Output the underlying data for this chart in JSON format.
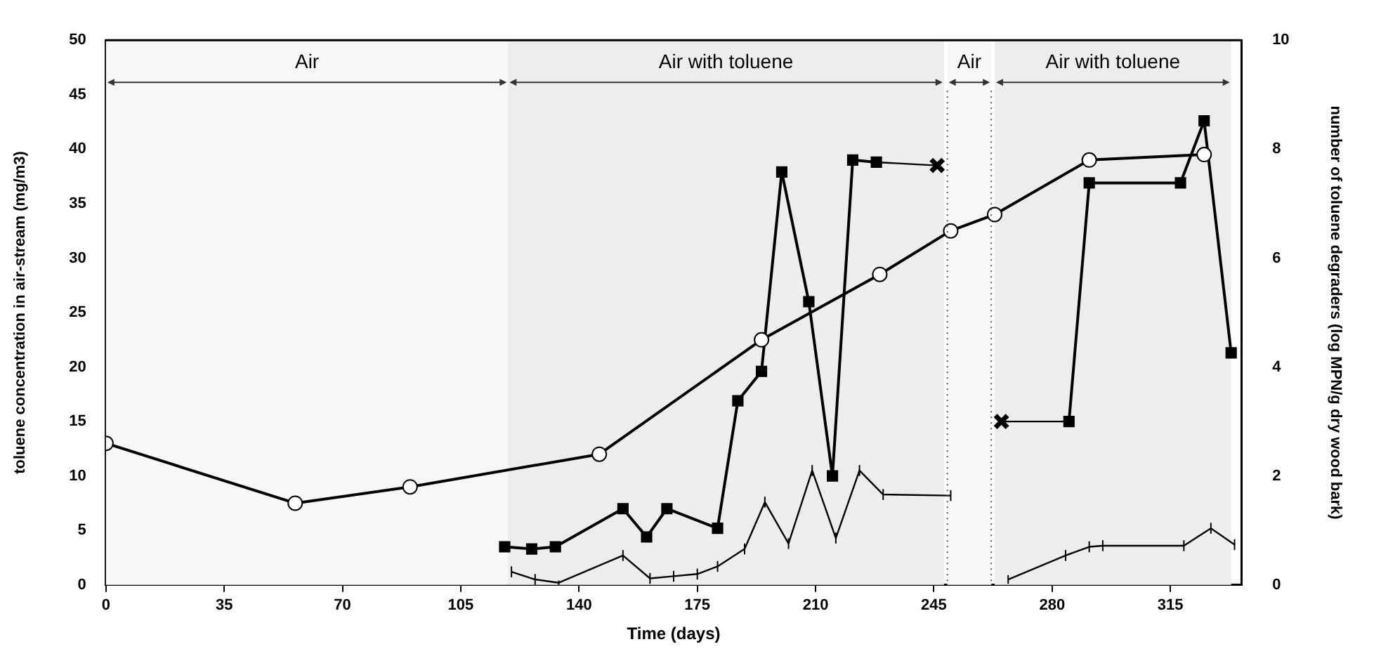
{
  "chart_data": {
    "type": "line",
    "xlabel": "Time (days)",
    "ylabel": "toluene concentration in air-stream (mg/m3)",
    "y2label": "number of toluene degraders (log MPN/g dry wood bark)",
    "xlim": [
      0,
      336
    ],
    "xticks": [
      0,
      35,
      70,
      105,
      140,
      175,
      210,
      245,
      280,
      315
    ],
    "ylim": [
      0,
      50
    ],
    "yticks": [
      0,
      5,
      10,
      15,
      20,
      25,
      30,
      35,
      40,
      45,
      50
    ],
    "y2lim": [
      0,
      10
    ],
    "y2ticks": [
      0,
      2,
      4,
      6,
      8,
      10
    ],
    "grid": false,
    "legend": false,
    "series": [
      {
        "marker": "circle",
        "axis": "y2",
        "color": "#000000",
        "x": [
          0,
          56,
          90,
          146,
          194,
          229,
          250,
          263,
          291,
          325
        ],
        "values": [
          2.6,
          1.5,
          1.8,
          2.4,
          4.5,
          5.7,
          6.5,
          6.8,
          7.8,
          7.9
        ]
      },
      {
        "marker": "square",
        "axis": "y",
        "color": "#000000",
        "x": [
          118,
          126,
          133,
          153,
          160,
          166,
          181,
          187,
          194,
          200,
          208,
          215,
          221,
          228
        ],
        "values": [
          3.5,
          3.3,
          3.5,
          7.0,
          4.4,
          7.0,
          5.2,
          16.9,
          19.6,
          37.9,
          26.0,
          10.0,
          39.0,
          38.8
        ]
      },
      {
        "type": "line",
        "axis": "y",
        "color": "#000000",
        "x": [
          228,
          246
        ],
        "values": [
          38.8,
          38.5
        ]
      },
      {
        "type": "scatter",
        "marker": "cross",
        "axis": "y",
        "color": "#000000",
        "x": [
          246,
          265
        ],
        "values": [
          38.5,
          15.0
        ]
      },
      {
        "type": "line",
        "axis": "y",
        "color": "#000000",
        "x": [
          265,
          285
        ],
        "values": [
          15.0,
          15.0
        ]
      },
      {
        "type": "line",
        "marker": "square",
        "axis": "y",
        "color": "#000000",
        "x": [
          285,
          291,
          318,
          325,
          333
        ],
        "values": [
          15.0,
          36.9,
          36.9,
          42.6,
          21.3
        ]
      },
      {
        "type": "line",
        "marker": "none",
        "axis": "y",
        "color": "#000000",
        "x": [
          120,
          127,
          134,
          153,
          161,
          168,
          175,
          181,
          189,
          195,
          202,
          209,
          216,
          223,
          230,
          250
        ],
        "values": [
          1.2,
          0.5,
          0.2,
          2.7,
          0.6,
          0.8,
          1.0,
          1.7,
          3.3,
          7.6,
          3.8,
          10.5,
          4.3,
          10.5,
          8.3,
          8.2
        ],
        "errors": [
          0.5,
          0.5,
          0.2,
          0.5,
          0.5,
          0.5,
          0.5,
          0.5,
          0.5,
          0.5,
          0.5,
          0.5,
          0.5,
          0.5,
          0.5,
          0.5
        ]
      },
      {
        "type": "line",
        "marker": "none",
        "axis": "y",
        "color": "#000000",
        "x": [
          267,
          284,
          291,
          295,
          319,
          327,
          334
        ],
        "values": [
          0.5,
          2.7,
          3.5,
          3.6,
          3.6,
          5.2,
          3.7
        ],
        "errors": [
          0.4,
          0.5,
          0.5,
          0.5,
          0.5,
          0.5,
          0.5
        ]
      }
    ],
    "bands": [
      {
        "axis": "x",
        "from": 0,
        "to": 119,
        "label": "Air",
        "color": "#f7f7f7"
      },
      {
        "axis": "x",
        "from": 119,
        "to": 248,
        "label": "Air with toluene",
        "color": "#ededed"
      },
      {
        "axis": "x",
        "from": 249,
        "to": 262,
        "label": "Air",
        "color": "#f7f7f7"
      },
      {
        "axis": "x",
        "from": 263,
        "to": 333,
        "label": "Air with toluene",
        "color": "#ededed"
      }
    ],
    "ref_lines": [
      {
        "axis": "x",
        "value": 249,
        "line_style": "dotted",
        "color": "#555555"
      },
      {
        "axis": "x",
        "value": 262,
        "line_style": "dotted",
        "color": "#555555"
      }
    ]
  }
}
